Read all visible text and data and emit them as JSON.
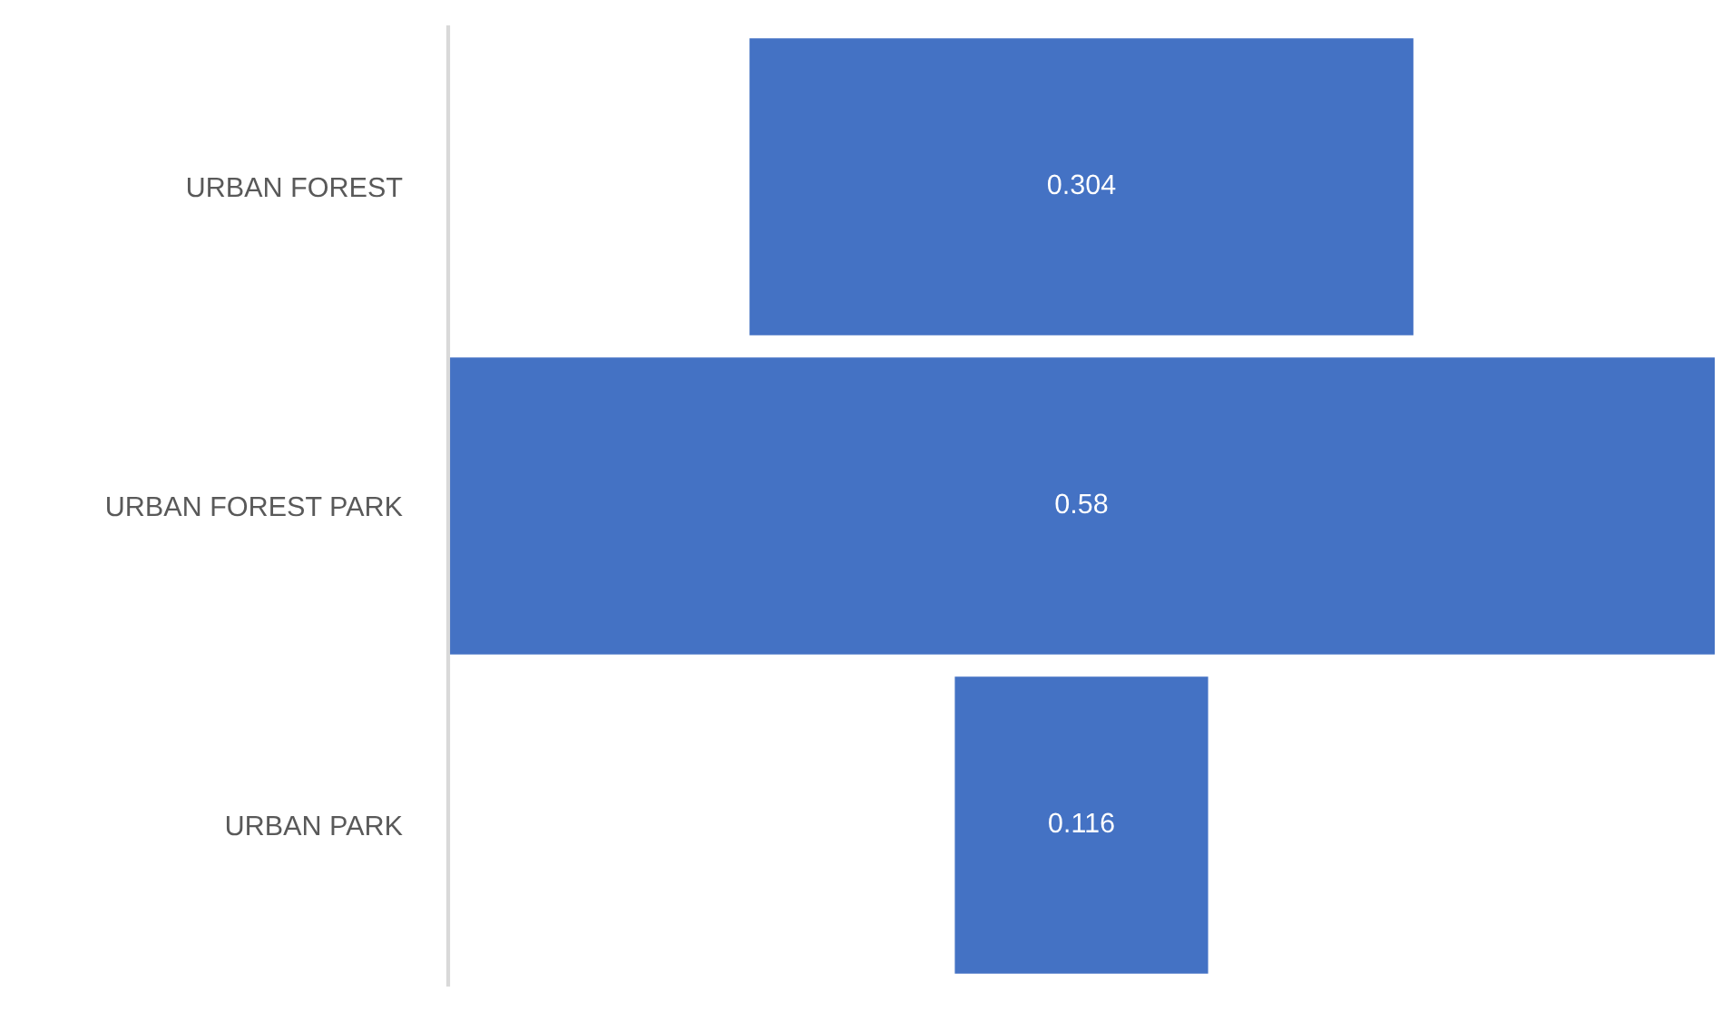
{
  "chart_data": {
    "type": "other",
    "categories": [
      "URBAN FOREST",
      "URBAN FOREST PARK",
      "URBAN PARK"
    ],
    "values": [
      0.304,
      0.58,
      0.116
    ],
    "color": "#4472c4",
    "data_labels": true
  }
}
